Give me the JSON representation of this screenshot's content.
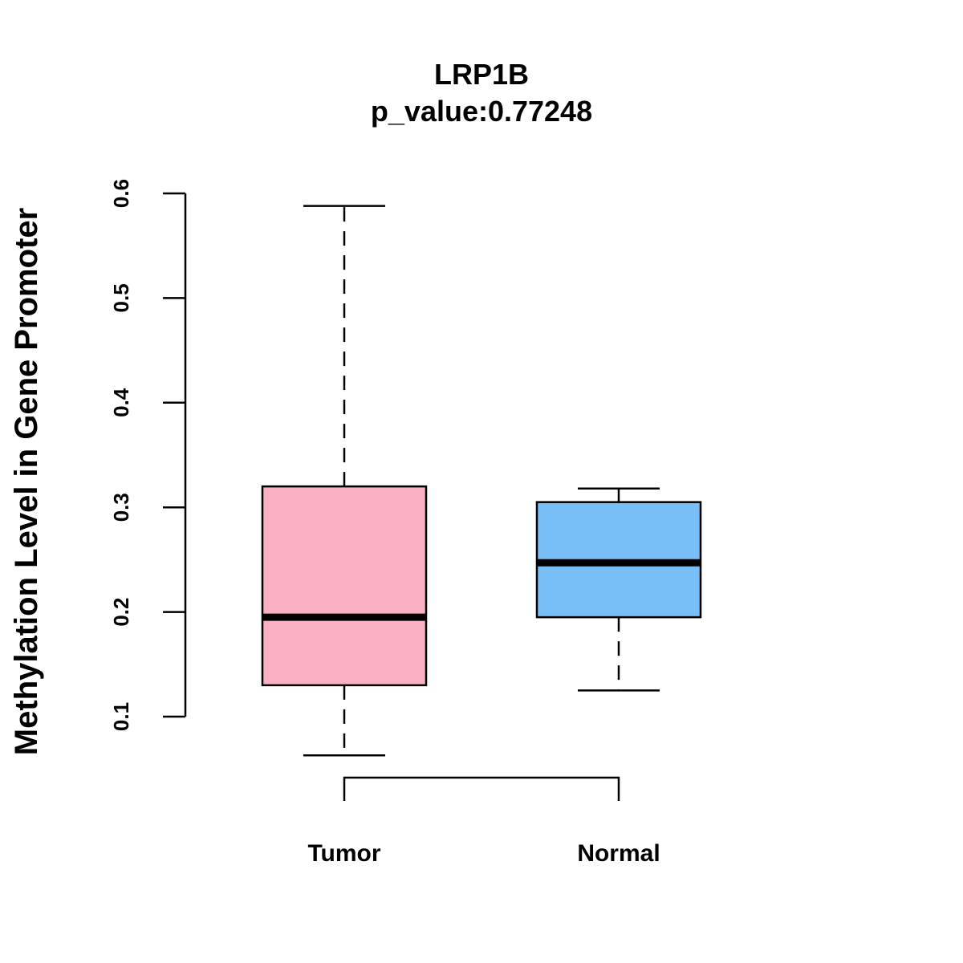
{
  "chart_data": {
    "type": "boxplot",
    "title": "LRP1B",
    "subtitle": "p_value:0.77248",
    "ylabel": "Methylation Level in Gene Promoter",
    "xlabel": "",
    "ylim": [
      0.1,
      0.6
    ],
    "yticks": [
      "0.1",
      "0.2",
      "0.3",
      "0.4",
      "0.5",
      "0.6"
    ],
    "categories": [
      "Tumor",
      "Normal"
    ],
    "series": [
      {
        "name": "Tumor",
        "color": "#fbb0c3",
        "whisker_low": 0.063,
        "q1": 0.13,
        "median": 0.195,
        "q3": 0.32,
        "whisker_high": 0.588
      },
      {
        "name": "Normal",
        "color": "#78bff7",
        "whisker_low": 0.125,
        "q1": 0.195,
        "median": 0.247,
        "q3": 0.305,
        "whisker_high": 0.318
      }
    ],
    "comparison": [
      "Tumor",
      "Normal"
    ],
    "grid": false,
    "legend": "none"
  }
}
